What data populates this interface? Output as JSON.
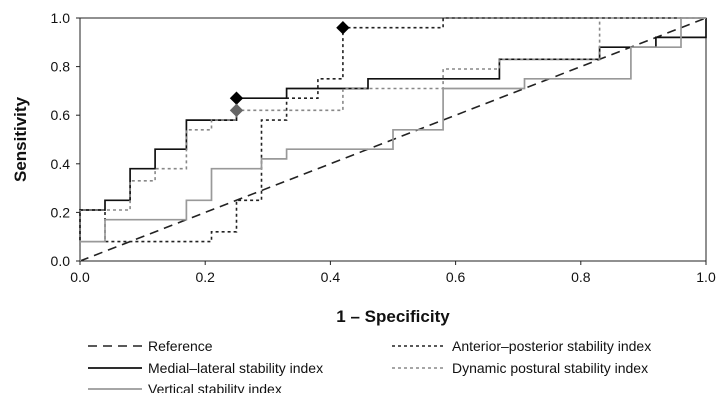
{
  "chart_data": {
    "type": "line",
    "title": "",
    "xlabel": "1 – Specificity",
    "ylabel": "Sensitivity",
    "xlim": [
      0,
      1
    ],
    "ylim": [
      0,
      1
    ],
    "xticks": [
      "0.0",
      "0.2",
      "0.4",
      "0.6",
      "0.8",
      "1.0"
    ],
    "yticks": [
      "0.0",
      "0.2",
      "0.4",
      "0.6",
      "0.8",
      "1.0"
    ],
    "grid": false,
    "legend_position": "bottom",
    "series": [
      {
        "name": "Reference",
        "color": "#222222",
        "style": "dashed",
        "points": [
          [
            0,
            0
          ],
          [
            1,
            1
          ]
        ]
      },
      {
        "name": "Anterior–posterior stability index",
        "color": "#222222",
        "style": "dotted",
        "points": [
          [
            0,
            0
          ],
          [
            0,
            0.21
          ],
          [
            0.04,
            0.21
          ],
          [
            0.04,
            0.08
          ],
          [
            0.21,
            0.08
          ],
          [
            0.21,
            0.12
          ],
          [
            0.25,
            0.12
          ],
          [
            0.25,
            0.25
          ],
          [
            0.29,
            0.25
          ],
          [
            0.29,
            0.58
          ],
          [
            0.33,
            0.58
          ],
          [
            0.33,
            0.67
          ],
          [
            0.38,
            0.67
          ],
          [
            0.38,
            0.75
          ],
          [
            0.42,
            0.75
          ],
          [
            0.42,
            0.96
          ],
          [
            0.58,
            0.96
          ],
          [
            0.58,
            1.0
          ],
          [
            1.0,
            1.0
          ]
        ],
        "marker": [
          0.42,
          0.96
        ]
      },
      {
        "name": "Medial–lateral stability index",
        "color": "#111111",
        "style": "solid",
        "points": [
          [
            0,
            0
          ],
          [
            0,
            0.21
          ],
          [
            0.04,
            0.21
          ],
          [
            0.04,
            0.25
          ],
          [
            0.08,
            0.25
          ],
          [
            0.08,
            0.38
          ],
          [
            0.12,
            0.38
          ],
          [
            0.12,
            0.46
          ],
          [
            0.17,
            0.46
          ],
          [
            0.17,
            0.58
          ],
          [
            0.25,
            0.58
          ],
          [
            0.25,
            0.67
          ],
          [
            0.33,
            0.67
          ],
          [
            0.33,
            0.71
          ],
          [
            0.46,
            0.71
          ],
          [
            0.46,
            0.75
          ],
          [
            0.67,
            0.75
          ],
          [
            0.67,
            0.83
          ],
          [
            0.83,
            0.83
          ],
          [
            0.83,
            0.88
          ],
          [
            0.92,
            0.88
          ],
          [
            0.92,
            0.92
          ],
          [
            1.0,
            0.92
          ],
          [
            1.0,
            1.0
          ]
        ],
        "marker": [
          0.25,
          0.67
        ]
      },
      {
        "name": "Dynamic postural stability index",
        "color": "#888888",
        "style": "dotted",
        "points": [
          [
            0,
            0
          ],
          [
            0,
            0.21
          ],
          [
            0.08,
            0.21
          ],
          [
            0.08,
            0.33
          ],
          [
            0.12,
            0.33
          ],
          [
            0.12,
            0.38
          ],
          [
            0.17,
            0.38
          ],
          [
            0.17,
            0.54
          ],
          [
            0.21,
            0.54
          ],
          [
            0.21,
            0.58
          ],
          [
            0.25,
            0.58
          ],
          [
            0.25,
            0.62
          ],
          [
            0.42,
            0.62
          ],
          [
            0.42,
            0.71
          ],
          [
            0.58,
            0.71
          ],
          [
            0.58,
            0.79
          ],
          [
            0.67,
            0.79
          ],
          [
            0.67,
            0.83
          ],
          [
            0.83,
            0.83
          ],
          [
            0.83,
            1.0
          ],
          [
            1.0,
            1.0
          ]
        ],
        "marker": [
          0.25,
          0.62
        ]
      },
      {
        "name": "Vertical stability index",
        "color": "#999999",
        "style": "solid",
        "points": [
          [
            0,
            0
          ],
          [
            0,
            0.08
          ],
          [
            0.04,
            0.08
          ],
          [
            0.04,
            0.17
          ],
          [
            0.17,
            0.17
          ],
          [
            0.17,
            0.25
          ],
          [
            0.21,
            0.25
          ],
          [
            0.21,
            0.38
          ],
          [
            0.29,
            0.38
          ],
          [
            0.29,
            0.42
          ],
          [
            0.33,
            0.42
          ],
          [
            0.33,
            0.46
          ],
          [
            0.5,
            0.46
          ],
          [
            0.5,
            0.54
          ],
          [
            0.58,
            0.54
          ],
          [
            0.58,
            0.71
          ],
          [
            0.71,
            0.71
          ],
          [
            0.71,
            0.75
          ],
          [
            0.88,
            0.75
          ],
          [
            0.88,
            0.88
          ],
          [
            0.96,
            0.88
          ],
          [
            0.96,
            1.0
          ],
          [
            1.0,
            1.0
          ]
        ]
      }
    ]
  }
}
